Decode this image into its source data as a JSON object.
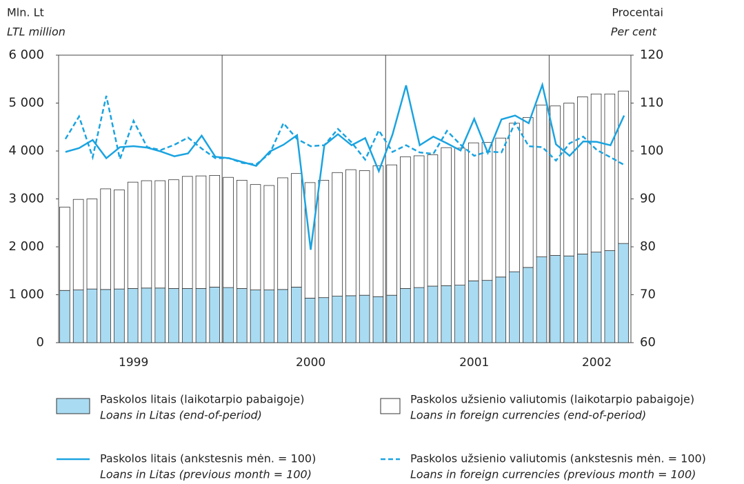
{
  "chart_data": {
    "type": "bar",
    "y_label": "Mln. Lt",
    "y_label_en": "LTL million",
    "y2_label": "Procentai",
    "y2_label_en": "Per cent",
    "categories": [
      null,
      null,
      null,
      null,
      null,
      "1999",
      null,
      null,
      null,
      null,
      null,
      null,
      null,
      null,
      null,
      null,
      null,
      null,
      "2000",
      null,
      null,
      null,
      null,
      null,
      null,
      null,
      null,
      null,
      null,
      null,
      "2001",
      null,
      null,
      null,
      null,
      null,
      null,
      null,
      null,
      "2002",
      null,
      null
    ],
    "ylim": [
      0,
      6000
    ],
    "yticks": [
      {
        "value": 0,
        "label": "0"
      },
      {
        "value": 1000,
        "label": "1 000"
      },
      {
        "value": 2000,
        "label": "2 000"
      },
      {
        "value": 3000,
        "label": "3 000"
      },
      {
        "value": 4000,
        "label": "4 000"
      },
      {
        "value": 5000,
        "label": "5 000"
      },
      {
        "value": 6000,
        "label": "6 000"
      }
    ],
    "y2lim": [
      60,
      120
    ],
    "y2ticks": [
      60,
      70,
      80,
      90,
      100,
      110,
      120
    ],
    "series": [
      {
        "name": "Paskolos litais (laikotarpio pabaigoje)",
        "name_en": "Loans in Litas (end-of-period)",
        "type": "bar",
        "color": "#a9dcf3",
        "values": [
          1090,
          1100,
          1120,
          1110,
          1120,
          1130,
          1140,
          1140,
          1130,
          1130,
          1130,
          1160,
          1150,
          1130,
          1100,
          1100,
          1110,
          1160,
          930,
          940,
          970,
          980,
          990,
          960,
          990,
          1130,
          1150,
          1180,
          1190,
          1200,
          1290,
          1300,
          1370,
          1480,
          1570,
          1790,
          1820,
          1810,
          1850,
          1890,
          1920,
          2070
        ]
      },
      {
        "name": "Paskolos užsienio valiutomis (laikotarpio pabaigoje)",
        "name_en": "Loans in foreign currencies (end-of-period)",
        "type": "bar",
        "color": "#ffffff",
        "values": [
          1740,
          1890,
          1880,
          2100,
          2070,
          2220,
          2240,
          2240,
          2270,
          2340,
          2350,
          2330,
          2300,
          2260,
          2200,
          2180,
          2330,
          2370,
          2410,
          2450,
          2580,
          2630,
          2600,
          2730,
          2720,
          2750,
          2750,
          2740,
          2880,
          2860,
          2880,
          2880,
          2900,
          3100,
          3130,
          3170,
          3120,
          3190,
          3280,
          3300,
          3270,
          3180
        ]
      },
      {
        "name": "Paskolos litais (ankstesnis mėn. = 100)",
        "name_en": "Loans in Litas (previous month = 100)",
        "type": "line",
        "axis": "y2",
        "color": "#1aa3e0",
        "values": [
          99.8,
          100.6,
          102.3,
          98.5,
          100.8,
          101,
          100.7,
          99.9,
          98.9,
          99.5,
          103.2,
          98.8,
          98.5,
          97.7,
          96.9,
          99.9,
          101.3,
          103.3,
          79.4,
          101.2,
          103.5,
          101.2,
          102.7,
          95.8,
          103.4,
          113.7,
          101.2,
          103,
          101.6,
          100.1,
          106.7,
          99.6,
          106.6,
          107.4,
          105.8,
          113.8,
          101.4,
          99,
          102,
          101.9,
          101.2,
          107.4
        ]
      },
      {
        "name": "Paskolos užsienio valiutomis (ankstesnis mėn. = 100)",
        "name_en": "Loans in foreign currencies (previous month = 100)",
        "type": "line",
        "dashed": true,
        "axis": "y2",
        "color": "#1aa3e0",
        "values": [
          102.5,
          107.2,
          98.7,
          111.5,
          98.3,
          106.3,
          100.8,
          100.2,
          101.3,
          102.8,
          100.5,
          98.5,
          98.5,
          97.5,
          97.2,
          99.5,
          105.8,
          102.5,
          101,
          101.2,
          104.6,
          101.8,
          98.2,
          104.3,
          99.8,
          101.2,
          99.7,
          99.4,
          104.2,
          101.3,
          99,
          99.9,
          99.7,
          105.9,
          101,
          100.8,
          98,
          101.6,
          103,
          100.2,
          98.7,
          97.1
        ]
      }
    ]
  }
}
